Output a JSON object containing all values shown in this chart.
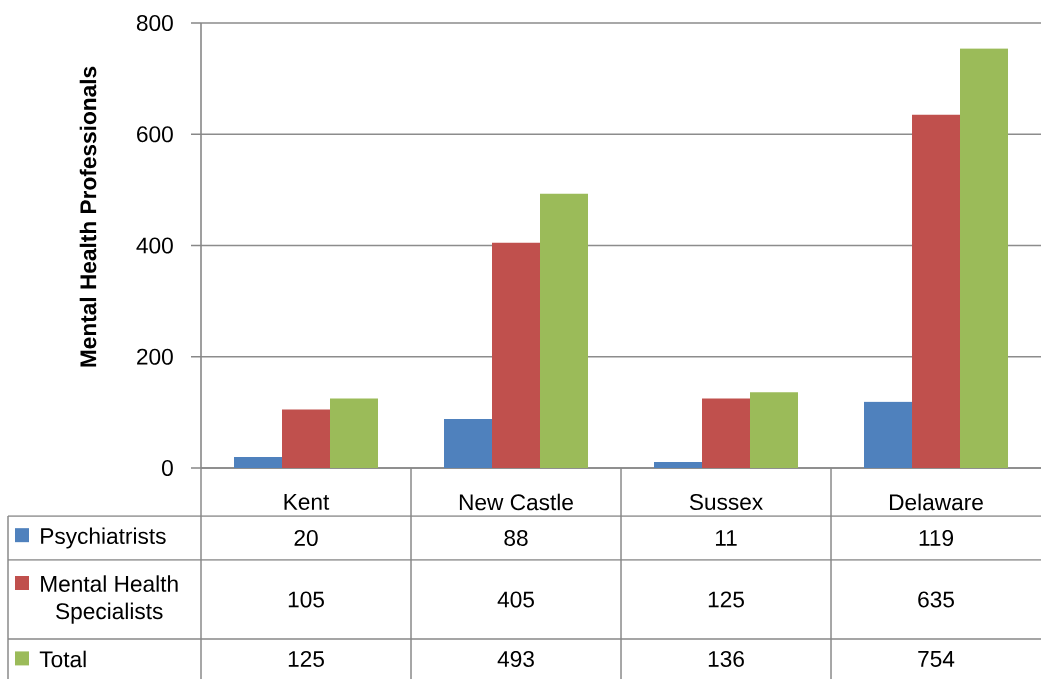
{
  "chart_data": {
    "type": "bar",
    "ylabel": "Mental Health Professionals",
    "categories": [
      "Kent",
      "New Castle",
      "Sussex",
      "Delaware"
    ],
    "series": [
      {
        "name": "Psychiatrists",
        "color": "#4f81bd",
        "values": [
          20,
          88,
          11,
          119
        ]
      },
      {
        "name": "Mental Health Specialists",
        "color": "#c0504d",
        "values": [
          105,
          405,
          125,
          635
        ]
      },
      {
        "name": "Total",
        "color": "#9bbb59",
        "values": [
          125,
          493,
          136,
          754
        ]
      }
    ],
    "ylim": [
      0,
      800
    ],
    "yticks": [
      0,
      200,
      400,
      600,
      800
    ],
    "grid": "y",
    "legend": "bottom",
    "data_labels": true
  }
}
